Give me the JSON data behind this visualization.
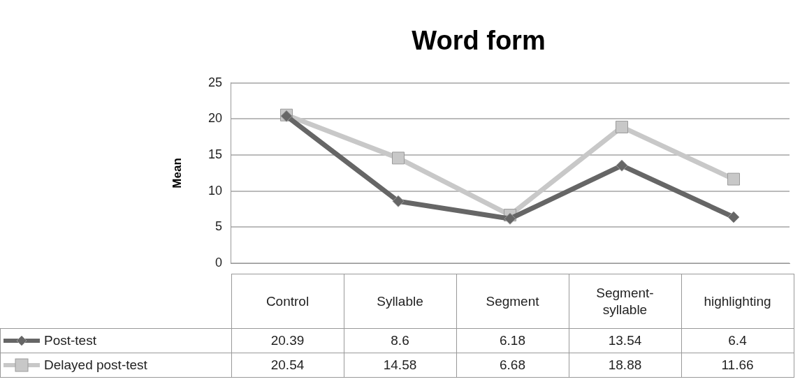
{
  "chart_data": {
    "type": "line",
    "title": "Word form",
    "ylabel": "Mean",
    "categories": [
      "Control",
      "Syllable",
      "Segment",
      "Segment-\nsyllable",
      "highlighting"
    ],
    "series": [
      {
        "name": "Post-test",
        "color": "#666666",
        "marker": "diamond",
        "values": [
          20.39,
          8.6,
          6.18,
          13.54,
          6.4
        ]
      },
      {
        "name": "Delayed post-test",
        "color": "#c8c8c8",
        "marker": "square",
        "values": [
          20.54,
          14.58,
          6.68,
          18.88,
          11.66
        ]
      }
    ],
    "ylim": [
      0,
      25
    ],
    "yticks": [
      0,
      5,
      10,
      15,
      20,
      25
    ],
    "grid": "y",
    "legend": "bottom",
    "data_labels": true
  }
}
